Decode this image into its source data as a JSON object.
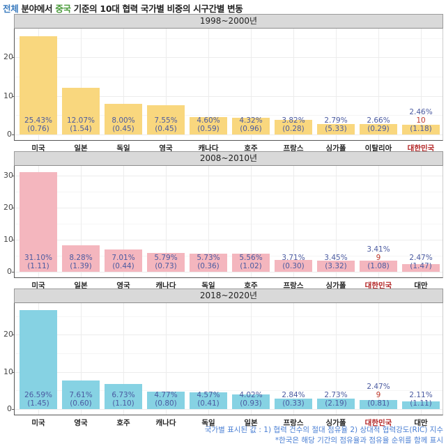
{
  "title": {
    "part1": "전체",
    "part2": " 분야에서 ",
    "part3": "중국",
    "part4": " 기준의 10대 협력 국가별 비중의 시구간별 변동"
  },
  "colors": {
    "title_blue": "#3a7bbf",
    "title_green": "#4a9a3a",
    "panel1_bar": "#f9d77e",
    "panel2_bar": "#f4b6be",
    "panel3_bar": "#86d2e3",
    "label_text": "#4a5aa0",
    "korea_highlight": "#b22222",
    "note_text": "#4a7fd4"
  },
  "notes": {
    "line1": "국가별 표시된 값 : 1) 협력 건수의 절대 점유율 2) 상대적 협력강도(RIC) 지수",
    "line2": "*한국은 해당 기간의 점유율과 점유율 순위를 함께 표시"
  },
  "chart_data": [
    {
      "type": "bar",
      "title": "1998~2000년",
      "categories": [
        "미국",
        "일본",
        "독일",
        "영국",
        "캐나다",
        "호주",
        "프랑스",
        "싱가폴",
        "이탈리아",
        "대한민국"
      ],
      "values": [
        25.43,
        12.07,
        8.0,
        7.55,
        4.6,
        4.32,
        3.82,
        2.79,
        2.66,
        2.46
      ],
      "value_labels": [
        "25.43%",
        "12.07%",
        "8.00%",
        "7.55%",
        "4.60%",
        "4.32%",
        "3.82%",
        "2.79%",
        "2.66%",
        "2.46%"
      ],
      "ric": [
        "(0.76)",
        "(1.54)",
        "(0.45)",
        "(0.45)",
        "(0.59)",
        "(0.96)",
        "(0.28)",
        "(5.33)",
        "(0.29)",
        "(1.18)"
      ],
      "korea_rank": "10",
      "yticks": [
        0,
        10,
        20
      ],
      "ylim": [
        0,
        27.5
      ],
      "xlabel": "",
      "ylabel": ""
    },
    {
      "type": "bar",
      "title": "2008~2010년",
      "categories": [
        "미국",
        "일본",
        "영국",
        "캐나다",
        "독일",
        "호주",
        "프랑스",
        "싱가폴",
        "대한민국",
        "대만"
      ],
      "values": [
        31.1,
        8.28,
        7.01,
        5.79,
        5.73,
        5.56,
        3.71,
        3.45,
        3.41,
        2.47
      ],
      "value_labels": [
        "31.10%",
        "8.28%",
        "7.01%",
        "5.79%",
        "5.73%",
        "5.56%",
        "3.71%",
        "3.45%",
        "3.41%",
        "2.47%"
      ],
      "ric": [
        "(1.11)",
        "(1.39)",
        "(0.44)",
        "(0.73)",
        "(0.36)",
        "(1.02)",
        "(0.30)",
        "(3.32)",
        "(1.08)",
        "(1.47)"
      ],
      "korea_rank": "9",
      "yticks": [
        0,
        10,
        20,
        30
      ],
      "ylim": [
        0,
        33
      ],
      "xlabel": "",
      "ylabel": ""
    },
    {
      "type": "bar",
      "title": "2018~2020년",
      "categories": [
        "미국",
        "영국",
        "호주",
        "캐나다",
        "독일",
        "일본",
        "프랑스",
        "싱가폴",
        "대한민국",
        "대만"
      ],
      "values": [
        26.59,
        7.61,
        6.73,
        4.77,
        4.57,
        4.02,
        2.84,
        2.73,
        2.47,
        2.11
      ],
      "value_labels": [
        "26.59%",
        "7.61%",
        "6.73%",
        "4.77%",
        "4.57%",
        "4.02%",
        "2.84%",
        "2.73%",
        "2.47%",
        "2.11%"
      ],
      "ric": [
        "(1.45)",
        "(0.60)",
        "(1.10)",
        "(0.80)",
        "(0.41)",
        "(0.93)",
        "(0.33)",
        "(2.19)",
        "(0.81)",
        "(1.11)"
      ],
      "korea_rank": "9",
      "yticks": [
        0,
        10,
        20
      ],
      "ylim": [
        0,
        28.5
      ],
      "xlabel": "",
      "ylabel": ""
    }
  ]
}
